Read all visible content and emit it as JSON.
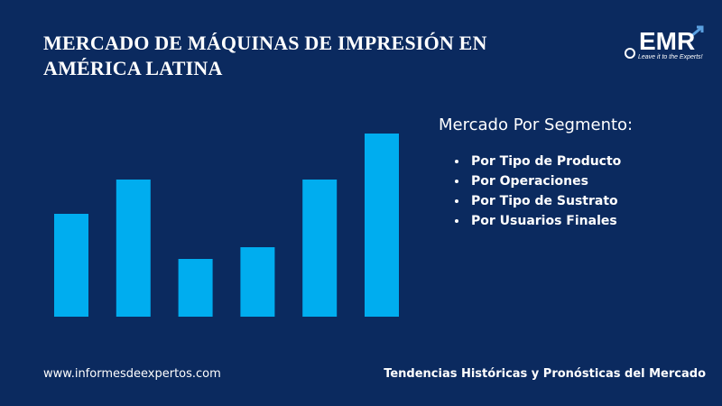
{
  "header": {
    "title": "MERCADO DE MÁQUINAS DE IMPRESIÓN EN AMÉRICA LATINA",
    "logo": "EMR",
    "logo_tagline": "Leave it to the Experts!"
  },
  "chart_data": {
    "type": "bar",
    "categories": [
      null,
      null,
      null,
      null,
      null,
      null
    ],
    "values": [
      114,
      152,
      64,
      77,
      152,
      203
    ],
    "color": "#00adef"
  },
  "segments": {
    "heading": "Mercado Por Segmento:",
    "items": [
      "Por Tipo de Producto",
      "Por Operaciones",
      "Por Tipo de Sustrato",
      "Por Usuarios Finales"
    ]
  },
  "footer": {
    "url": "www.informesdeexpertos.com",
    "tagline": "Tendencias Históricas y Pronósticas del Mercado"
  }
}
